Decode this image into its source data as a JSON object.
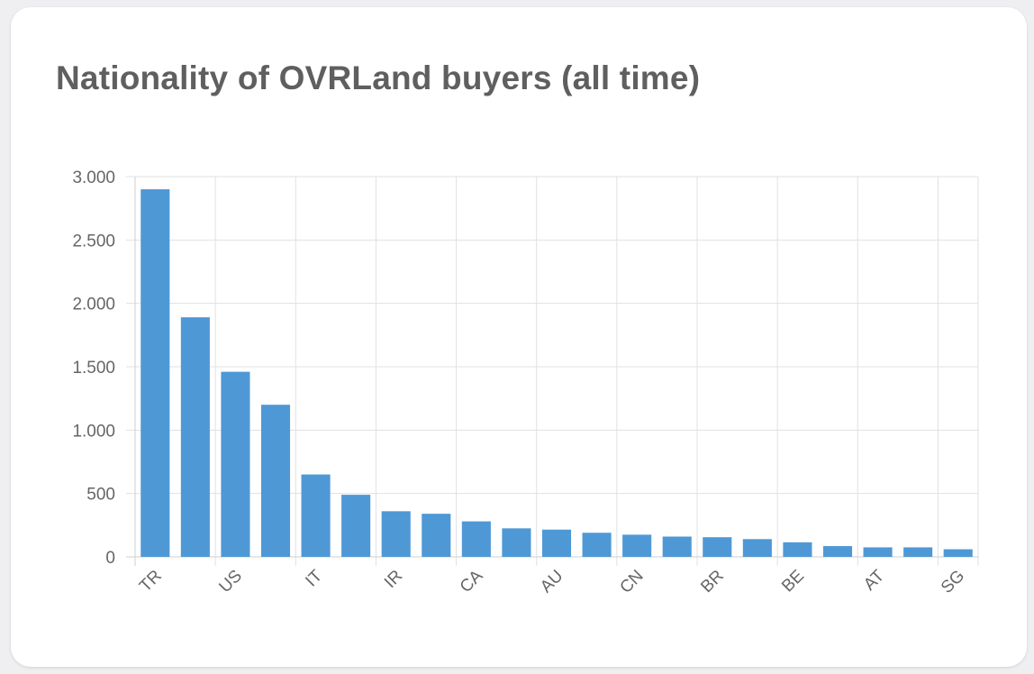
{
  "card": {
    "title": "Nationality of OVRLand buyers (all time)"
  },
  "chart_data": {
    "type": "bar",
    "title": "Nationality of OVRLand buyers (all time)",
    "xlabel": "",
    "ylabel": "",
    "ylim": [
      0,
      3000
    ],
    "y_ticks": [
      0,
      500,
      1000,
      1500,
      2000,
      2500,
      3000
    ],
    "y_tick_labels": [
      "0",
      "500",
      "1.000",
      "1.500",
      "2.000",
      "2.500",
      "3.000"
    ],
    "categories": [
      "TR",
      "",
      "US",
      "",
      "IT",
      "",
      "IR",
      "",
      "CA",
      "",
      "AU",
      "",
      "CN",
      "",
      "BR",
      "",
      "BE",
      "",
      "AT",
      "",
      "SG"
    ],
    "values": [
      2900,
      1890,
      1460,
      1200,
      650,
      490,
      360,
      340,
      280,
      225,
      215,
      190,
      175,
      160,
      155,
      140,
      115,
      85,
      75,
      75,
      60
    ],
    "bar_color": "#4f98d6",
    "grid": true,
    "legend": "none"
  }
}
